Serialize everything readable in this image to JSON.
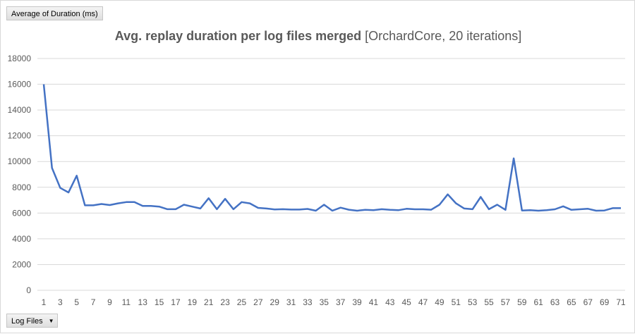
{
  "value_field_button": {
    "label": "Average of Duration (ms)"
  },
  "axis_field_button": {
    "label": "Log Files"
  },
  "chart_data": {
    "type": "line",
    "title_bold": "Avg. replay duration per log files merged",
    "title_regular": " [OrchardCore, 20 iterations]",
    "xlabel": "",
    "ylabel": "",
    "ylim": [
      0,
      18000
    ],
    "yticks": [
      0,
      2000,
      4000,
      6000,
      8000,
      10000,
      12000,
      14000,
      16000,
      18000
    ],
    "xtick_labels": [
      1,
      3,
      5,
      7,
      9,
      11,
      13,
      15,
      17,
      19,
      21,
      23,
      25,
      27,
      29,
      31,
      33,
      35,
      37,
      39,
      41,
      43,
      45,
      47,
      49,
      51,
      53,
      55,
      57,
      59,
      61,
      63,
      65,
      67,
      69,
      71
    ],
    "grid": true,
    "legend": "none",
    "series_color": "#4472c4",
    "x": [
      1,
      2,
      3,
      4,
      5,
      6,
      7,
      8,
      9,
      10,
      11,
      12,
      13,
      14,
      15,
      16,
      17,
      18,
      19,
      20,
      21,
      22,
      23,
      24,
      25,
      26,
      27,
      28,
      29,
      30,
      31,
      32,
      33,
      34,
      35,
      36,
      37,
      38,
      39,
      40,
      41,
      42,
      43,
      44,
      45,
      46,
      47,
      48,
      49,
      50,
      51,
      52,
      53,
      54,
      55,
      56,
      57,
      58,
      59,
      60,
      61,
      62,
      63,
      64,
      65,
      66,
      67,
      68,
      69,
      70,
      71
    ],
    "values": [
      16000,
      9500,
      7950,
      7600,
      8900,
      6600,
      6600,
      6700,
      6620,
      6750,
      6850,
      6850,
      6550,
      6550,
      6500,
      6300,
      6300,
      6650,
      6500,
      6350,
      7150,
      6300,
      7100,
      6300,
      6850,
      6750,
      6400,
      6350,
      6280,
      6300,
      6270,
      6270,
      6320,
      6180,
      6650,
      6180,
      6420,
      6260,
      6180,
      6250,
      6220,
      6300,
      6250,
      6220,
      6330,
      6290,
      6290,
      6260,
      6650,
      7450,
      6750,
      6350,
      6300,
      7250,
      6300,
      6650,
      6250,
      10250,
      6200,
      6220,
      6180,
      6220,
      6290,
      6520,
      6250,
      6290,
      6330,
      6180,
      6200,
      6380,
      6380
    ]
  }
}
